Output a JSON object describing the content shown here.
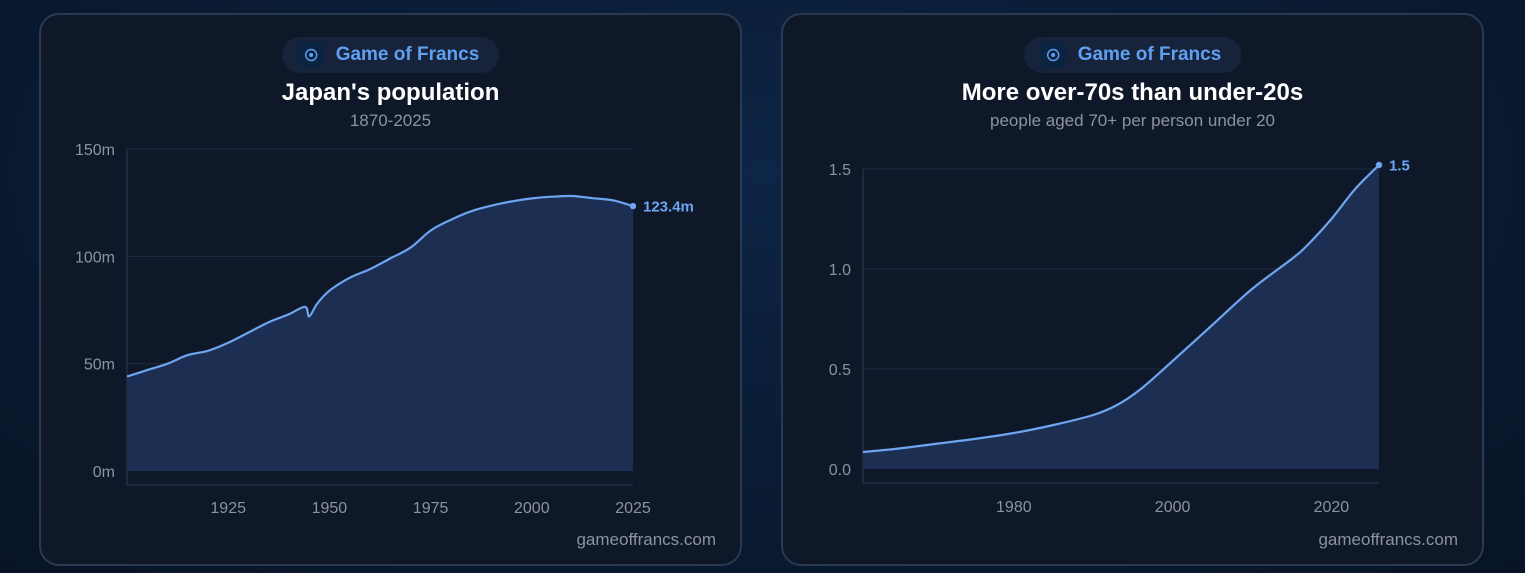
{
  "colors": {
    "accent": "#5fa0f2",
    "line": "#6ea5f0",
    "area": "#1c2f52",
    "grid": "#1e2a3e",
    "axis_text": "#8b93a3",
    "card_bg": "#0f1829",
    "card_border": "#2a3a52"
  },
  "brand": {
    "label": "Game of Francs",
    "icon": "game-of-francs-logo-icon"
  },
  "charts": [
    {
      "title": "Japan's population",
      "subtitle": "1870-2025",
      "footer": "gameoffrancs.com",
      "end_label": "123.4m",
      "chart_data": {
        "type": "area",
        "xlim": [
          1900,
          2025
        ],
        "ylim": [
          0,
          150
        ],
        "x_ticks": [
          1925,
          1950,
          1975,
          2000,
          2025
        ],
        "x_tick_labels": [
          "1925",
          "1950",
          "1975",
          "2000",
          "2025"
        ],
        "y_ticks": [
          0,
          50,
          100,
          150
        ],
        "y_tick_labels": [
          "0m",
          "50m",
          "100m",
          "150m"
        ],
        "grid": true,
        "series": [
          {
            "x": [
              1900,
              1905,
              1910,
              1915,
              1920,
              1925,
              1930,
              1935,
              1940,
              1944,
              1945,
              1947,
              1950,
              1955,
              1960,
              1965,
              1970,
              1975,
              1980,
              1985,
              1990,
              1995,
              2000,
              2005,
              2010,
              2015,
              2020,
              2025
            ],
            "y": [
              44,
              47,
              50,
              54,
              56,
              59.7,
              64.5,
              69.3,
              73,
              76.5,
              72,
              78,
              84,
              90,
              94,
              99,
              104,
              112,
              117,
              121,
              123.6,
              125.6,
              127,
              127.8,
              128.1,
              127.1,
              126.1,
              123.4
            ]
          }
        ]
      }
    },
    {
      "title": "More over-70s than under-20s",
      "subtitle": "people aged 70+ per person under 20",
      "footer": "gameoffrancs.com",
      "end_label": "1.5",
      "chart_data": {
        "type": "area",
        "xlim": [
          1961,
          2026
        ],
        "ylim": [
          0,
          1.5
        ],
        "x_ticks": [
          1980,
          2000,
          2020
        ],
        "x_tick_labels": [
          "1980",
          "2000",
          "2020"
        ],
        "y_ticks": [
          0,
          0.5,
          1.0,
          1.5
        ],
        "y_tick_labels": [
          "0.0",
          "0.5",
          "1.0",
          "1.5"
        ],
        "grid": true,
        "series": [
          {
            "x": [
              1961,
              1965,
              1970,
              1975,
              1980,
              1985,
              1990,
              1993,
              1996,
              2000,
              2005,
              2010,
              2015,
              2017,
              2020,
              2023,
              2026
            ],
            "y": [
              0.085,
              0.1,
              0.125,
              0.15,
              0.18,
              0.22,
              0.27,
              0.32,
              0.4,
              0.54,
              0.72,
              0.9,
              1.05,
              1.12,
              1.25,
              1.4,
              1.52
            ]
          }
        ]
      }
    }
  ]
}
